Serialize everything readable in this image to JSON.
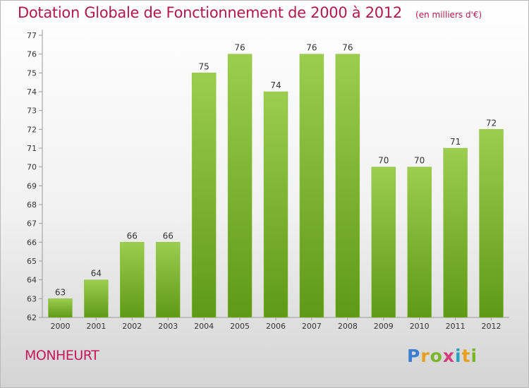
{
  "header": {
    "title": "Dotation Globale de Fonctionnement de 2000 à 2012",
    "subtitle": "(en milliers d'€)"
  },
  "commune": "MONHEURT",
  "logo": {
    "text": "Proxiti",
    "letters": [
      "P",
      "r",
      "o",
      "x",
      "i",
      "t",
      "i"
    ]
  },
  "colors": {
    "title": "#b0184e",
    "bar_top": "#9ccd4f",
    "bar_bottom": "#5e9a16"
  },
  "chart_data": {
    "type": "bar",
    "title": "Dotation Globale de Fonctionnement de 2000 à 2012",
    "subtitle": "(en milliers d'€)",
    "xlabel": "",
    "ylabel": "",
    "categories": [
      "2000",
      "2001",
      "2002",
      "2003",
      "2004",
      "2005",
      "2006",
      "2007",
      "2008",
      "2009",
      "2010",
      "2011",
      "2012"
    ],
    "values": [
      63,
      64,
      66,
      66,
      75,
      76,
      74,
      76,
      76,
      70,
      70,
      71,
      72
    ],
    "ylim": [
      62,
      77
    ],
    "yticks": [
      62,
      63,
      64,
      65,
      66,
      67,
      68,
      69,
      70,
      71,
      72,
      73,
      74,
      75,
      76,
      77
    ],
    "grid": false,
    "legend": "none"
  }
}
